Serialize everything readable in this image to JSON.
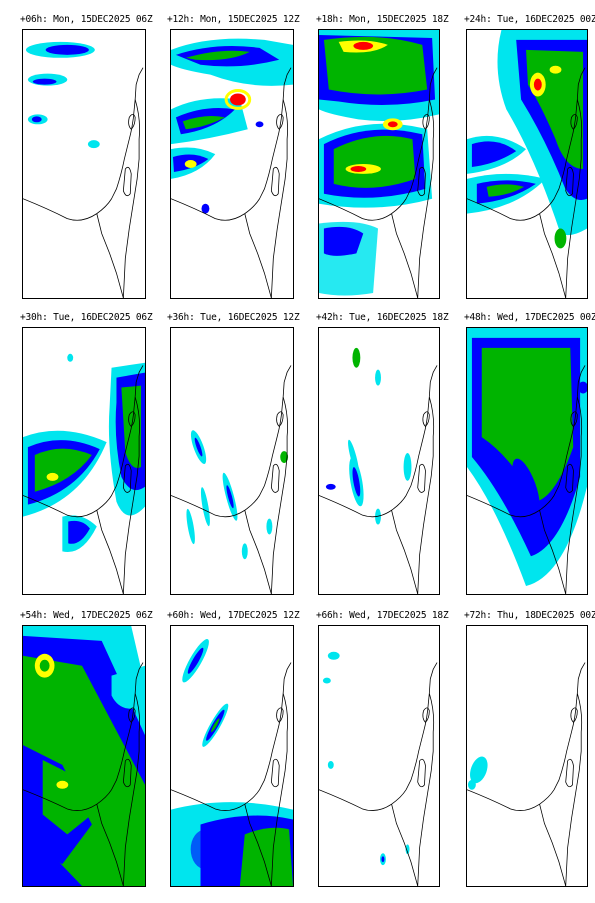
{
  "colors": {
    "light": "#00e5ee",
    "medium": "#0000ff",
    "heavy": "#00b400",
    "intense": "#ffff00",
    "extreme": "#ff0000",
    "coast": "#000000"
  },
  "panels": [
    {
      "title": "+06h: Mon, 15DEC2025 06Z",
      "intensity": 1
    },
    {
      "title": "+12h: Mon, 15DEC2025 12Z",
      "intensity": 3
    },
    {
      "title": "+18h: Mon, 15DEC2025 18Z",
      "intensity": 4
    },
    {
      "title": "+24h: Tue, 16DEC2025 00Z",
      "intensity": 4
    },
    {
      "title": "+30h: Tue, 16DEC2025 06Z",
      "intensity": 3
    },
    {
      "title": "+36h: Tue, 16DEC2025 12Z",
      "intensity": 1
    },
    {
      "title": "+42h: Tue, 16DEC2025 18Z",
      "intensity": 1
    },
    {
      "title": "+48h: Wed, 17DEC2025 00Z",
      "intensity": 3
    },
    {
      "title": "+54h: Wed, 17DEC2025 06Z",
      "intensity": 3
    },
    {
      "title": "+60h: Wed, 17DEC2025 12Z",
      "intensity": 2
    },
    {
      "title": "+66h: Wed, 17DEC2025 18Z",
      "intensity": 0
    },
    {
      "title": "+72h: Thu, 18DEC2025 00Z",
      "intensity": 0
    }
  ]
}
